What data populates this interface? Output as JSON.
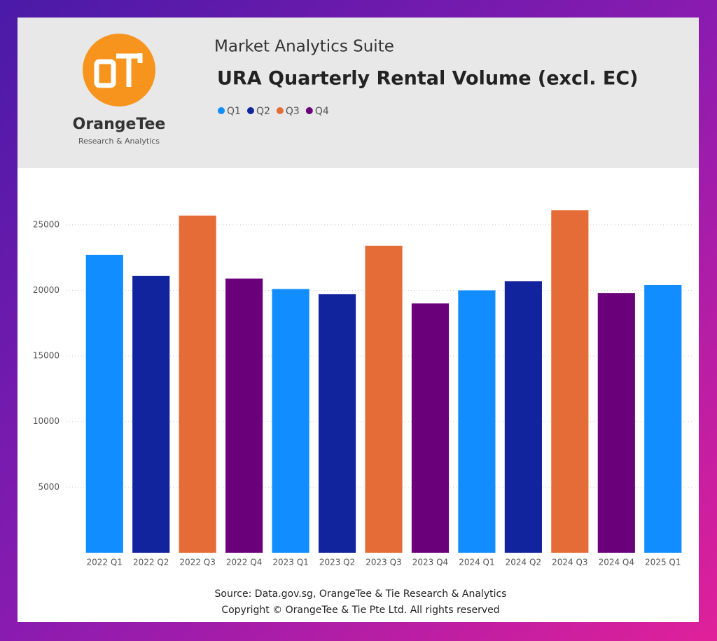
{
  "app": "Market Analytics Suite",
  "logo": {
    "name": "OrangeTee",
    "tagline": "Research & Analytics"
  },
  "chart_data": {
    "type": "bar",
    "title": "URA Quarterly Rental Volume (excl. EC)",
    "categories": [
      "2022 Q1",
      "2022 Q2",
      "2022 Q3",
      "2022 Q4",
      "2023 Q1",
      "2023 Q2",
      "2023 Q3",
      "2023 Q4",
      "2024 Q1",
      "2024 Q2",
      "2024 Q3",
      "2024 Q4",
      "2025 Q1"
    ],
    "series": [
      {
        "name": "Q1",
        "color": "#118dff",
        "values": [
          22700,
          null,
          null,
          null,
          20100,
          null,
          null,
          null,
          20000,
          null,
          null,
          null,
          20400
        ]
      },
      {
        "name": "Q2",
        "color": "#12239e",
        "values": [
          null,
          21100,
          null,
          null,
          null,
          19700,
          null,
          null,
          null,
          20700,
          null,
          null,
          null
        ]
      },
      {
        "name": "Q3",
        "color": "#e66c37",
        "values": [
          null,
          null,
          25700,
          null,
          null,
          null,
          23400,
          null,
          null,
          null,
          26100,
          null,
          null
        ]
      },
      {
        "name": "Q4",
        "color": "#6b007b",
        "values": [
          null,
          null,
          null,
          20900,
          null,
          null,
          null,
          19000,
          null,
          null,
          null,
          19800,
          null
        ]
      }
    ],
    "ylim": [
      0,
      27500
    ],
    "yticks": [
      5000,
      10000,
      15000,
      20000,
      25000
    ],
    "grid": true,
    "source": "Source: Data.gov.sg, OrangeTee & Tie Research & Analytics",
    "copyright": "Copyright © OrangeTee & Tie Pte Ltd. All rights reserved"
  }
}
